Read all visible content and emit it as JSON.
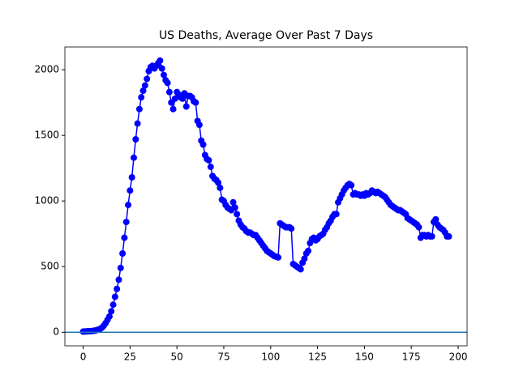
{
  "chart_data": {
    "type": "line",
    "title": "US Deaths, Average Over Past 7 Days",
    "x": [
      0,
      1,
      2,
      3,
      4,
      5,
      6,
      7,
      8,
      9,
      10,
      11,
      12,
      13,
      14,
      15,
      16,
      17,
      18,
      19,
      20,
      21,
      22,
      23,
      24,
      25,
      26,
      27,
      28,
      29,
      30,
      31,
      32,
      33,
      34,
      35,
      36,
      37,
      38,
      39,
      40,
      41,
      42,
      43,
      44,
      45,
      46,
      47,
      48,
      49,
      50,
      51,
      52,
      53,
      54,
      55,
      56,
      57,
      58,
      59,
      60,
      61,
      62,
      63,
      64,
      65,
      66,
      67,
      68,
      69,
      70,
      71,
      72,
      73,
      74,
      75,
      76,
      77,
      78,
      79,
      80,
      81,
      82,
      83,
      84,
      85,
      86,
      87,
      88,
      89,
      90,
      91,
      92,
      93,
      94,
      95,
      96,
      97,
      98,
      99,
      100,
      101,
      102,
      103,
      104,
      105,
      106,
      107,
      108,
      109,
      110,
      111,
      112,
      113,
      114,
      115,
      116,
      117,
      118,
      119,
      120,
      121,
      122,
      123,
      124,
      125,
      126,
      127,
      128,
      129,
      130,
      131,
      132,
      133,
      134,
      135,
      136,
      137,
      138,
      139,
      140,
      141,
      142,
      143,
      144,
      145,
      146,
      147,
      148,
      149,
      150,
      151,
      152,
      153,
      154,
      155,
      156,
      157,
      158,
      159,
      160,
      161,
      162,
      163,
      164,
      165,
      166,
      167,
      168,
      169,
      170,
      171,
      172,
      173,
      174,
      175,
      176,
      177,
      178,
      179,
      180,
      181,
      182,
      183,
      184,
      185,
      186,
      187,
      188,
      189,
      190,
      191,
      192,
      193,
      194,
      195
    ],
    "series": [
      {
        "color": "#0000ff",
        "values": [
          5,
          6,
          7,
          8,
          8,
          10,
          12,
          15,
          20,
          25,
          35,
          50,
          70,
          95,
          120,
          160,
          210,
          270,
          330,
          400,
          490,
          600,
          720,
          840,
          970,
          1080,
          1180,
          1330,
          1470,
          1590,
          1700,
          1790,
          1840,
          1880,
          1930,
          1990,
          2020,
          2030,
          2010,
          2030,
          2050,
          2070,
          2010,
          1960,
          1920,
          1900,
          1830,
          1750,
          1700,
          1780,
          1830,
          1810,
          1790,
          1780,
          1820,
          1720,
          1800,
          1800,
          1790,
          1760,
          1750,
          1610,
          1580,
          1460,
          1430,
          1350,
          1320,
          1310,
          1260,
          1190,
          1170,
          1160,
          1140,
          1100,
          1010,
          1000,
          970,
          950,
          940,
          930,
          990,
          950,
          900,
          850,
          820,
          800,
          790,
          770,
          760,
          760,
          750,
          740,
          740,
          720,
          700,
          680,
          660,
          640,
          620,
          610,
          600,
          590,
          580,
          575,
          570,
          830,
          820,
          810,
          800,
          800,
          800,
          790,
          520,
          510,
          500,
          490,
          480,
          530,
          560,
          600,
          620,
          680,
          710,
          720,
          700,
          710,
          730,
          740,
          750,
          780,
          800,
          830,
          850,
          880,
          900,
          900,
          990,
          1020,
          1050,
          1080,
          1100,
          1120,
          1130,
          1120,
          1050,
          1060,
          1050,
          1050,
          1040,
          1050,
          1040,
          1060,
          1050,
          1060,
          1080,
          1070,
          1060,
          1070,
          1060,
          1050,
          1040,
          1030,
          1010,
          990,
          970,
          960,
          950,
          940,
          930,
          930,
          920,
          910,
          900,
          870,
          860,
          850,
          840,
          830,
          820,
          800,
          720,
          740,
          740,
          730,
          740,
          730,
          730,
          840,
          860,
          820,
          800,
          790,
          780,
          760,
          730,
          730
        ]
      }
    ],
    "xlim": [
      -9.75,
      204.75
    ],
    "ylim": [
      -103.5,
      2173.5
    ],
    "xticks": [
      0,
      25,
      50,
      75,
      100,
      125,
      150,
      175,
      200
    ],
    "yticks": [
      0,
      500,
      1000,
      1500,
      2000
    ],
    "hline": 0,
    "hline_color": "#1f77b4"
  }
}
